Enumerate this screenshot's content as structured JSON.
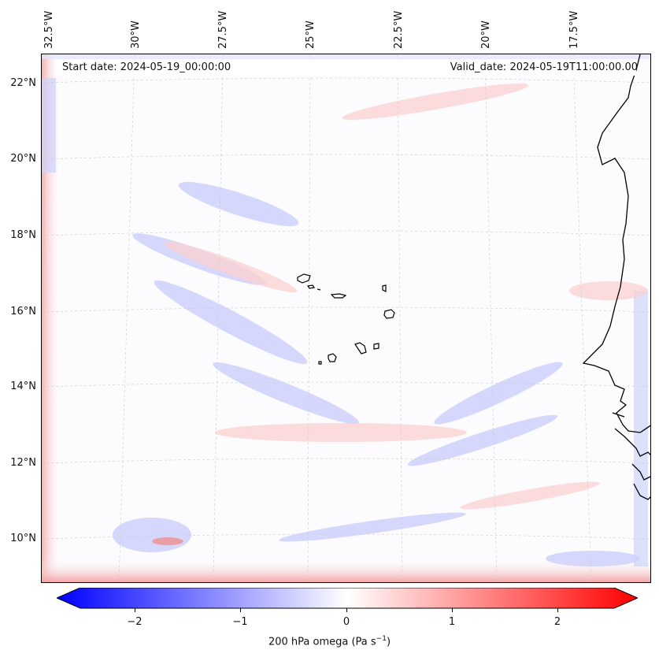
{
  "map": {
    "start_date": "Start date: 2024-05-19_00:00:00",
    "valid_date": "Valid_date: 2024-05-19T11:00:00.00",
    "lon_labels": [
      "32.5°W",
      "30°W",
      "27.5°W",
      "25°W",
      "22.5°W",
      "20°W",
      "17.5°W"
    ],
    "lat_labels": [
      "22°N",
      "20°N",
      "18°N",
      "16°N",
      "14°N",
      "12°N",
      "10°N"
    ]
  },
  "colorbar": {
    "label": "200 hPa omega (Pa s",
    "label_sup": "−1",
    "label_end": ")",
    "ticks": [
      "−2",
      "−1",
      "0",
      "1",
      "2"
    ],
    "min_color": "#0000ff",
    "mid_color": "#ffffff",
    "max_color": "#ff0000"
  }
}
